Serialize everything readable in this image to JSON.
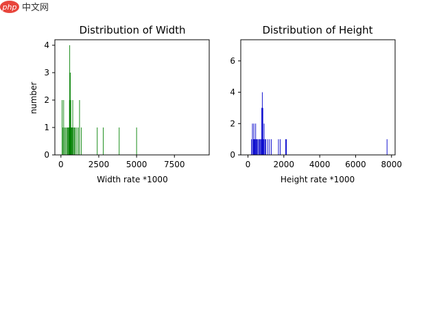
{
  "watermark": {
    "php": "php",
    "cn": "中文网"
  },
  "chart_data": [
    {
      "type": "bar",
      "title": "Distribution of Width",
      "xlabel": "Width rate *1000",
      "ylabel": "number",
      "xlim": [
        -400,
        9800
      ],
      "ylim": [
        0,
        4.2
      ],
      "xticks": [
        0,
        2500,
        5000,
        7500
      ],
      "xtick_labels": [
        "0",
        "2500",
        "5000",
        "7500"
      ],
      "yticks": [
        0,
        1,
        2,
        3,
        4
      ],
      "ytick_labels": [
        "0",
        "1",
        "2",
        "3",
        "4"
      ],
      "bar_width": 40,
      "color": "#008000",
      "x": [
        80,
        140,
        180,
        250,
        320,
        400,
        450,
        500,
        530,
        560,
        580,
        600,
        620,
        650,
        680,
        700,
        740,
        780,
        830,
        900,
        950,
        1050,
        1150,
        1230,
        1350,
        2400,
        2800,
        3850,
        5000
      ],
      "values": [
        2,
        1,
        2,
        1,
        1,
        1,
        1,
        1,
        1,
        2,
        4,
        1,
        3,
        2,
        1,
        1,
        1,
        2,
        1,
        1,
        1,
        1,
        1,
        2,
        1,
        1,
        1,
        1,
        1
      ]
    },
    {
      "type": "bar",
      "title": "Distribution of Height",
      "xlabel": "Height rate *1000",
      "ylabel": "",
      "xlim": [
        -400,
        8200
      ],
      "ylim": [
        0,
        7.35
      ],
      "xticks": [
        0,
        2000,
        4000,
        6000,
        8000
      ],
      "xtick_labels": [
        "0",
        "2000",
        "4000",
        "6000",
        "8000"
      ],
      "yticks": [
        0,
        2,
        4,
        6
      ],
      "ytick_labels": [
        "0",
        "2",
        "4",
        "6"
      ],
      "bar_width": 35,
      "color": "#0000cc",
      "x": [
        200,
        250,
        300,
        330,
        360,
        400,
        430,
        470,
        500,
        550,
        600,
        650,
        700,
        740,
        770,
        800,
        830,
        860,
        900,
        950,
        1000,
        1100,
        1200,
        1300,
        1700,
        1800,
        2100,
        2140,
        7750
      ],
      "values": [
        1,
        2,
        1,
        2,
        1,
        1,
        2,
        1,
        1,
        1,
        1,
        1,
        1,
        1,
        3,
        4,
        3,
        1,
        2,
        1,
        1,
        1,
        1,
        1,
        1,
        1,
        1,
        1,
        1
      ]
    }
  ]
}
